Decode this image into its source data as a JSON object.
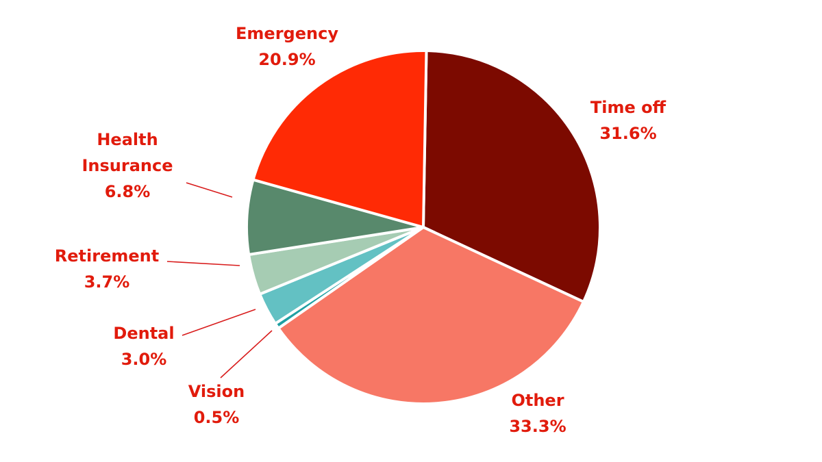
{
  "chart_data": {
    "type": "pie",
    "title": "",
    "start_angle_deg": 1,
    "direction": "clockwise",
    "slices": [
      {
        "label": "Time off",
        "value": 31.6,
        "value_label": "31.6%",
        "color": "#7c0a00"
      },
      {
        "label": "Other",
        "value": 33.3,
        "value_label": "33.3%",
        "color": "#f77765"
      },
      {
        "label": "Vision",
        "value": 0.5,
        "value_label": "0.5%",
        "color": "#1fa0a3"
      },
      {
        "label": "Dental",
        "value": 3.0,
        "value_label": "3.0%",
        "color": "#63c1c3"
      },
      {
        "label": "Retirement",
        "value": 3.7,
        "value_label": "3.7%",
        "color": "#a6ccb3"
      },
      {
        "label": "Health Insurance",
        "value": 6.8,
        "value_label": "6.8%",
        "color": "#58896c"
      },
      {
        "label": "Emergency",
        "value": 20.9,
        "value_label": "20.9%",
        "color": "#ff2a05"
      }
    ],
    "label_color": "#e11b0c",
    "legend": "none"
  }
}
